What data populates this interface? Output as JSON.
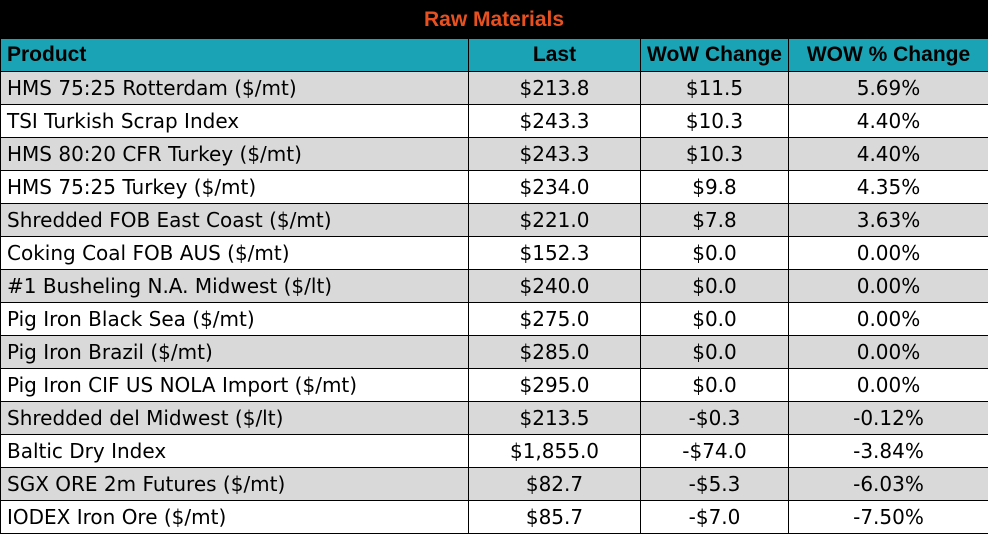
{
  "title": "Raw Materials",
  "columns": [
    "Product",
    "Last",
    "WoW Change",
    "WOW % Change"
  ],
  "rows": [
    {
      "product": "HMS 75:25 Rotterdam ($/mt)",
      "last": "$213.8",
      "wow_change": "$11.5",
      "wow_pct": "5.69%"
    },
    {
      "product": "TSI Turkish Scrap Index",
      "last": "$243.3",
      "wow_change": "$10.3",
      "wow_pct": "4.40%"
    },
    {
      "product": "HMS 80:20 CFR Turkey ($/mt)",
      "last": "$243.3",
      "wow_change": "$10.3",
      "wow_pct": "4.40%"
    },
    {
      "product": "HMS 75:25 Turkey ($/mt)",
      "last": "$234.0",
      "wow_change": "$9.8",
      "wow_pct": "4.35%"
    },
    {
      "product": "Shredded FOB East Coast ($/mt)",
      "last": "$221.0",
      "wow_change": "$7.8",
      "wow_pct": "3.63%"
    },
    {
      "product": "Coking Coal FOB AUS ($/mt)",
      "last": "$152.3",
      "wow_change": "$0.0",
      "wow_pct": "0.00%"
    },
    {
      "product": "#1 Busheling N.A. Midwest ($/lt)",
      "last": "$240.0",
      "wow_change": "$0.0",
      "wow_pct": "0.00%"
    },
    {
      "product": "Pig Iron Black Sea ($/mt)",
      "last": "$275.0",
      "wow_change": "$0.0",
      "wow_pct": "0.00%"
    },
    {
      "product": "Pig Iron Brazil ($/mt)",
      "last": "$285.0",
      "wow_change": "$0.0",
      "wow_pct": "0.00%"
    },
    {
      "product": "Pig Iron CIF US NOLA Import ($/mt)",
      "last": "$295.0",
      "wow_change": "$0.0",
      "wow_pct": "0.00%"
    },
    {
      "product": "Shredded del  Midwest ($/lt)",
      "last": "$213.5",
      "wow_change": "-$0.3",
      "wow_pct": "-0.12%"
    },
    {
      "product": "Baltic Dry Index",
      "last": "$1,855.0",
      "wow_change": "-$74.0",
      "wow_pct": "-3.84%"
    },
    {
      "product": "SGX ORE 2m Futures ($/mt)",
      "last": "$82.7",
      "wow_change": "-$5.3",
      "wow_pct": "-6.03%"
    },
    {
      "product": "IODEX  Iron Ore ($/mt)",
      "last": "$85.7",
      "wow_change": "-$7.0",
      "wow_pct": "-7.50%"
    }
  ],
  "colors": {
    "title_bg": "#000000",
    "title_text": "#e8511f",
    "header_bg": "#1aa3b4",
    "row_shade": "#d9d9d9",
    "row_plain": "#ffffff",
    "border": "#000000"
  }
}
